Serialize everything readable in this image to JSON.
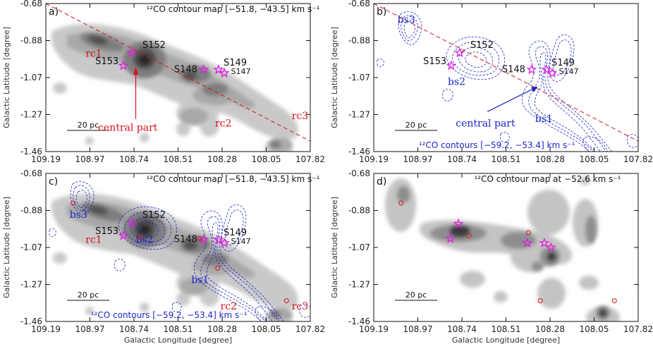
{
  "panels": [
    {
      "id": "a",
      "label": "a)",
      "title": "¹²CO contour map [−51.8, −43.5] km s⁻¹",
      "sources": [
        "S152",
        "S153",
        "S148",
        "S149",
        "S147"
      ],
      "red_labels": [
        "rc1",
        "rc2",
        "rc3"
      ],
      "blue_labels": [],
      "annotation": "central part",
      "scale": "20 pc",
      "contour_label": ""
    },
    {
      "id": "b",
      "label": "b)",
      "title": "",
      "sources": [
        "S152",
        "S153",
        "S148",
        "S149",
        "S147"
      ],
      "red_labels": [],
      "blue_labels": [
        "bs3",
        "bs2",
        "bs1"
      ],
      "annotation": "central part",
      "scale": "20 pc",
      "contour_label": "¹²CO contours [−59.2, −53.4] km s⁻¹"
    },
    {
      "id": "c",
      "label": "c)",
      "title": "¹²CO contour map [−51.8, −43.5] km s⁻¹",
      "sources": [
        "S152",
        "S153",
        "S148",
        "S149",
        "S147"
      ],
      "red_labels": [
        "rc1",
        "rc2",
        "rc3"
      ],
      "blue_labels": [
        "bs3",
        "bs2",
        "bs1"
      ],
      "annotation": "",
      "scale": "20 pc",
      "contour_label": "¹²CO contours [−59.2, −53.4] km s⁻¹"
    },
    {
      "id": "d",
      "label": "d)",
      "title": "¹²CO contour map at −52.6 km s⁻¹",
      "sources": [],
      "red_labels": [],
      "blue_labels": [],
      "annotation": "",
      "scale": "20 pc",
      "contour_label": ""
    }
  ],
  "axes": {
    "x_label": "Galactic Longitude [degree]",
    "y_label": "Galactic Latitude [degree]",
    "x_ticks": [
      "109.19",
      "108.97",
      "108.74",
      "108.51",
      "108.28",
      "108.05",
      "107.82"
    ],
    "y_ticks": [
      "-0.68",
      "-0.88",
      "-1.07",
      "-1.27",
      "-1.46"
    ]
  },
  "colors": {
    "red": "#d8121b",
    "blue": "#1a25c8",
    "magenta": "#e020e0"
  }
}
